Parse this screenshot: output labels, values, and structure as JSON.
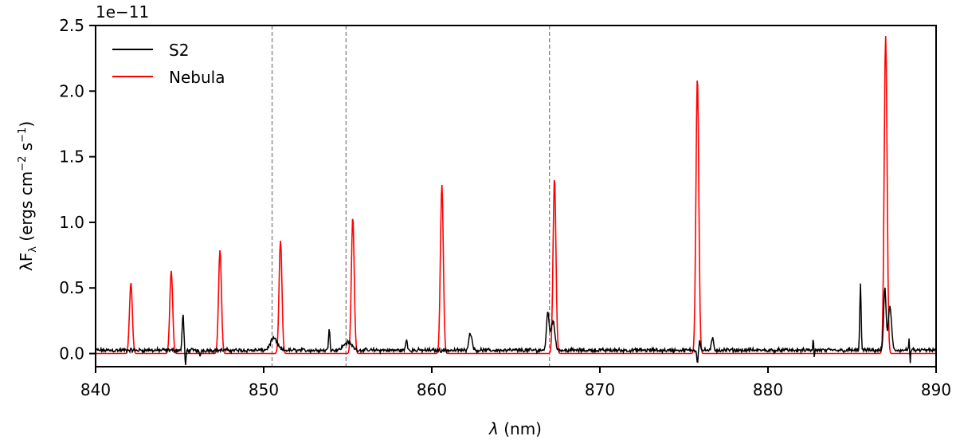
{
  "chart_data": {
    "type": "line",
    "title": "",
    "xlabel": "λ (nm)",
    "ylabel_main": "λF",
    "ylabel_sub": "λ",
    "ylabel_units": " (ergs cm",
    "ylabel_exp1": "−2",
    "ylabel_mid": " s",
    "ylabel_exp2": "−1",
    "ylabel_end": ")",
    "offset_label": "1e−11",
    "xlim": [
      840,
      890
    ],
    "ylim": [
      -0.1,
      2.5
    ],
    "xticks": [
      840,
      850,
      860,
      870,
      880,
      890
    ],
    "xtick_labels": [
      "840",
      "850",
      "860",
      "870",
      "880",
      "890"
    ],
    "yticks": [
      0.0,
      0.5,
      1.0,
      1.5,
      2.0,
      2.5
    ],
    "ytick_labels": [
      "0.0",
      "0.5",
      "1.0",
      "1.5",
      "2.0",
      "2.5"
    ],
    "legend": {
      "placement": "top-left",
      "entries": [
        "S2",
        "Nebula"
      ]
    },
    "vlines": [
      850.5,
      854.9,
      867.0
    ],
    "series": [
      {
        "name": "S2",
        "color": "#000000",
        "baseline": 0.025,
        "noise": 0.012,
        "features": [
          {
            "x": 845.2,
            "amp": 0.27,
            "width": 0.05
          },
          {
            "x": 845.35,
            "amp": -0.13,
            "width": 0.03
          },
          {
            "x": 846.2,
            "amp": -0.04,
            "width": 0.05
          },
          {
            "x": 850.6,
            "amp": 0.09,
            "width": 0.2
          },
          {
            "x": 853.9,
            "amp": 0.18,
            "width": 0.04
          },
          {
            "x": 855.0,
            "amp": 0.06,
            "width": 0.25
          },
          {
            "x": 858.5,
            "amp": 0.08,
            "width": 0.05
          },
          {
            "x": 862.3,
            "amp": 0.13,
            "width": 0.1
          },
          {
            "x": 866.9,
            "amp": 0.28,
            "width": 0.08
          },
          {
            "x": 867.2,
            "amp": 0.22,
            "width": 0.12
          },
          {
            "x": 875.8,
            "amp": -0.1,
            "width": 0.03
          },
          {
            "x": 875.95,
            "amp": 0.08,
            "width": 0.04
          },
          {
            "x": 876.7,
            "amp": 0.09,
            "width": 0.06
          },
          {
            "x": 882.7,
            "amp": 0.09,
            "width": 0.03
          },
          {
            "x": 882.75,
            "amp": -0.08,
            "width": 0.02
          },
          {
            "x": 885.5,
            "amp": 0.5,
            "width": 0.04
          },
          {
            "x": 886.95,
            "amp": 0.47,
            "width": 0.07
          },
          {
            "x": 887.25,
            "amp": 0.33,
            "width": 0.1
          },
          {
            "x": 888.4,
            "amp": 0.08,
            "width": 0.03
          },
          {
            "x": 888.45,
            "amp": -0.12,
            "width": 0.02
          }
        ]
      },
      {
        "name": "Nebula",
        "color": "#ff0000",
        "baseline": 0.0,
        "lines": [
          {
            "x": 842.1,
            "peak": 0.54
          },
          {
            "x": 844.5,
            "peak": 0.63
          },
          {
            "x": 847.4,
            "peak": 0.79
          },
          {
            "x": 851.0,
            "peak": 0.86
          },
          {
            "x": 855.3,
            "peak": 1.04
          },
          {
            "x": 860.6,
            "peak": 1.29
          },
          {
            "x": 867.3,
            "peak": 1.34
          },
          {
            "x": 875.8,
            "peak": 2.11
          },
          {
            "x": 887.0,
            "peak": 2.42
          }
        ]
      }
    ]
  }
}
